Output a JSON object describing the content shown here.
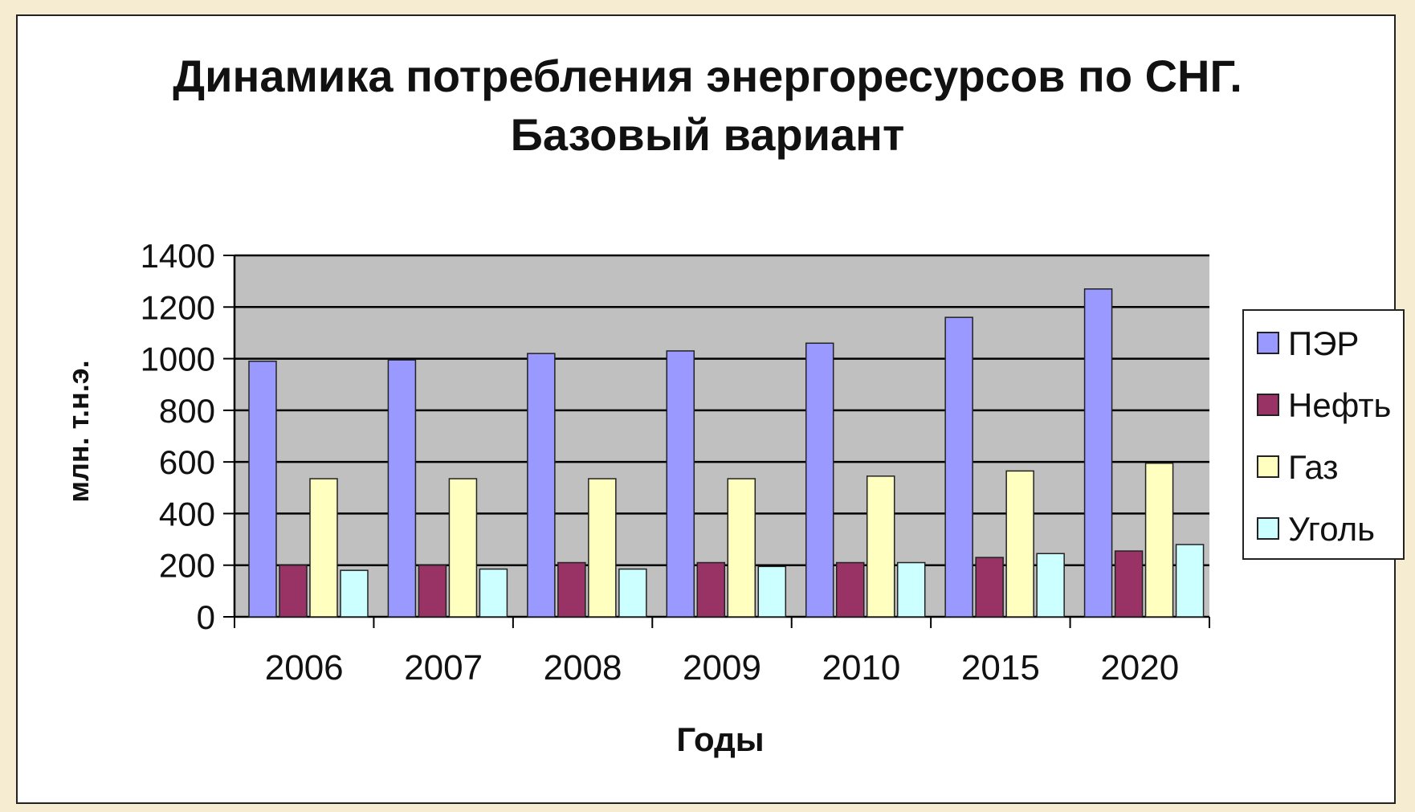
{
  "chart_data": {
    "type": "bar",
    "title": "Динамика потребления энергоресурсов по СНГ.",
    "subtitle": "Базовый вариант",
    "xlabel": "Годы",
    "ylabel": "млн. т.н.э.",
    "categories": [
      "2006",
      "2007",
      "2008",
      "2009",
      "2010",
      "2015",
      "2020"
    ],
    "ylim": [
      0,
      1400
    ],
    "yticks": [
      0,
      200,
      400,
      600,
      800,
      1000,
      1200,
      1400
    ],
    "grid": true,
    "legend_position": "right",
    "series": [
      {
        "name": "ПЭР",
        "color": "#9999ff",
        "values": [
          990,
          995,
          1020,
          1030,
          1060,
          1160,
          1270
        ]
      },
      {
        "name": "Нефть",
        "color": "#993366",
        "values": [
          200,
          200,
          210,
          210,
          210,
          230,
          255
        ]
      },
      {
        "name": "Газ",
        "color": "#ffffc0",
        "values": [
          535,
          535,
          535,
          535,
          545,
          565,
          595
        ]
      },
      {
        "name": "Уголь",
        "color": "#ccffff",
        "values": [
          180,
          185,
          185,
          195,
          210,
          245,
          280
        ]
      }
    ],
    "plot_background": "#c0c0c0"
  }
}
